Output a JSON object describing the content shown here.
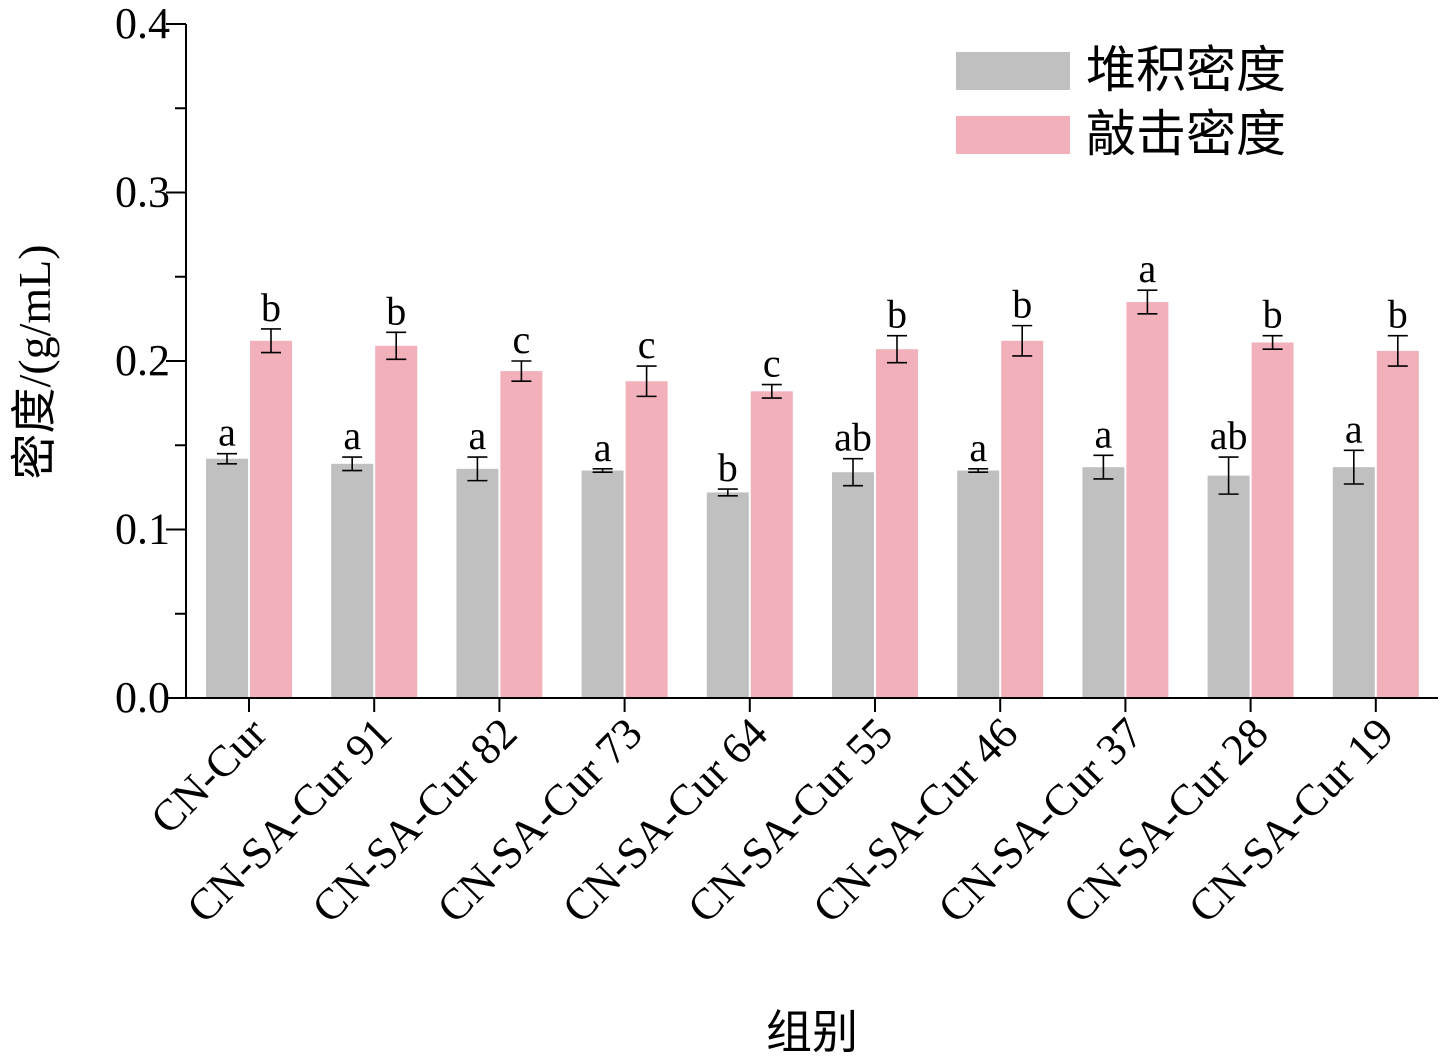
{
  "chart_data": {
    "type": "bar",
    "title": "",
    "xlabel": "组别",
    "ylabel": "密度/(g/mL)",
    "ylim": [
      0,
      0.4
    ],
    "yticks": [
      "0.0",
      "0.1",
      "0.2",
      "0.3",
      "0.4"
    ],
    "grid": false,
    "legend_position": "top-right",
    "categories": [
      "CN-Cur",
      "CN-SA-Cur 91",
      "CN-SA-Cur 82",
      "CN-SA-Cur 73",
      "CN-SA-Cur 64",
      "CN-SA-Cur 55",
      "CN-SA-Cur 46",
      "CN-SA-Cur 37",
      "CN-SA-Cur 28",
      "CN-SA-Cur 19"
    ],
    "series": [
      {
        "name": "堆积密度",
        "color": "#c0c0c0",
        "values": [
          0.142,
          0.139,
          0.136,
          0.135,
          0.122,
          0.134,
          0.135,
          0.137,
          0.132,
          0.137
        ],
        "errors": [
          0.003,
          0.004,
          0.007,
          0.001,
          0.002,
          0.008,
          0.001,
          0.007,
          0.011,
          0.01
        ],
        "significance": [
          "a",
          "a",
          "a",
          "a",
          "b",
          "ab",
          "a",
          "a",
          "ab",
          "a"
        ]
      },
      {
        "name": "敲击密度",
        "color": "#f2b0ba",
        "values": [
          0.212,
          0.209,
          0.194,
          0.188,
          0.182,
          0.207,
          0.212,
          0.235,
          0.211,
          0.206
        ],
        "errors": [
          0.007,
          0.008,
          0.006,
          0.009,
          0.004,
          0.008,
          0.009,
          0.007,
          0.004,
          0.009
        ],
        "significance": [
          "b",
          "b",
          "c",
          "c",
          "c",
          "b",
          "b",
          "a",
          "b",
          "b"
        ]
      }
    ]
  }
}
